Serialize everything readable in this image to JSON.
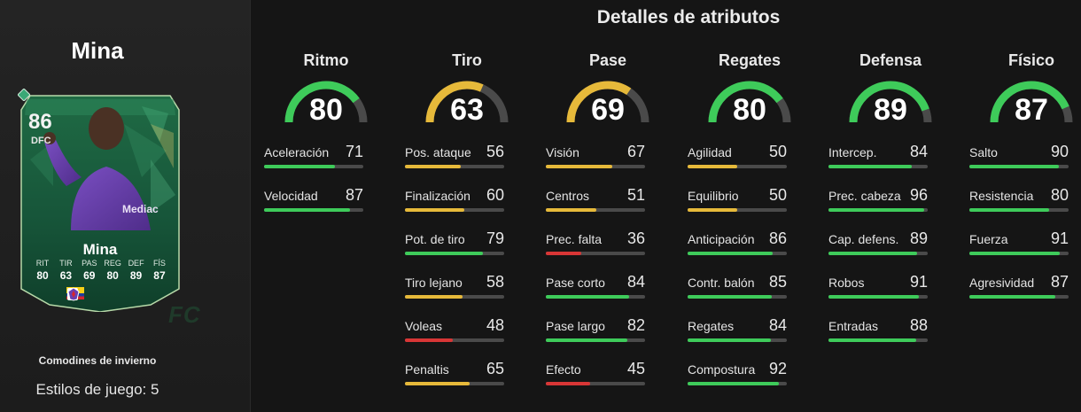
{
  "player": {
    "name": "Mina",
    "rating": "86",
    "position": "DFC",
    "card_name": "Mina",
    "card_type": "Comodines de invierno",
    "playstyles": "Estilos de juego: 5",
    "card_stats": [
      {
        "label": "RIT",
        "value": "80"
      },
      {
        "label": "TIR",
        "value": "63"
      },
      {
        "label": "PAS",
        "value": "69"
      },
      {
        "label": "REG",
        "value": "80"
      },
      {
        "label": "DEF",
        "value": "89"
      },
      {
        "label": "FÍS",
        "value": "87"
      }
    ]
  },
  "watermark": "FC",
  "title": "Detalles de atributos",
  "colors": {
    "green": "#3ecb5a",
    "yellow": "#e6b93a",
    "red": "#d83636",
    "track": "#4a4a4a"
  },
  "categories": [
    {
      "name": "Ritmo",
      "value": "80",
      "stats": [
        {
          "label": "Aceleración",
          "value": "71"
        },
        {
          "label": "Velocidad",
          "value": "87"
        }
      ]
    },
    {
      "name": "Tiro",
      "value": "63",
      "stats": [
        {
          "label": "Pos. ataque",
          "value": "56"
        },
        {
          "label": "Finalización",
          "value": "60"
        },
        {
          "label": "Pot. de tiro",
          "value": "79"
        },
        {
          "label": "Tiro lejano",
          "value": "58"
        },
        {
          "label": "Voleas",
          "value": "48"
        },
        {
          "label": "Penaltis",
          "value": "65"
        }
      ]
    },
    {
      "name": "Pase",
      "value": "69",
      "stats": [
        {
          "label": "Visión",
          "value": "67"
        },
        {
          "label": "Centros",
          "value": "51"
        },
        {
          "label": "Prec. falta",
          "value": "36"
        },
        {
          "label": "Pase corto",
          "value": "84"
        },
        {
          "label": "Pase largo",
          "value": "82"
        },
        {
          "label": "Efecto",
          "value": "45"
        }
      ]
    },
    {
      "name": "Regates",
      "value": "80",
      "stats": [
        {
          "label": "Agilidad",
          "value": "50"
        },
        {
          "label": "Equilibrio",
          "value": "50"
        },
        {
          "label": "Anticipación",
          "value": "86"
        },
        {
          "label": "Contr. balón",
          "value": "85"
        },
        {
          "label": "Regates",
          "value": "84"
        },
        {
          "label": "Compostura",
          "value": "92"
        }
      ]
    },
    {
      "name": "Defensa",
      "value": "89",
      "stats": [
        {
          "label": "Intercep.",
          "value": "84"
        },
        {
          "label": "Prec. cabeza",
          "value": "96"
        },
        {
          "label": "Cap. defens.",
          "value": "89"
        },
        {
          "label": "Robos",
          "value": "91"
        },
        {
          "label": "Entradas",
          "value": "88"
        }
      ]
    },
    {
      "name": "Físico",
      "value": "87",
      "stats": [
        {
          "label": "Salto",
          "value": "90"
        },
        {
          "label": "Resistencia",
          "value": "80"
        },
        {
          "label": "Fuerza",
          "value": "91"
        },
        {
          "label": "Agresividad",
          "value": "87"
        }
      ]
    }
  ]
}
